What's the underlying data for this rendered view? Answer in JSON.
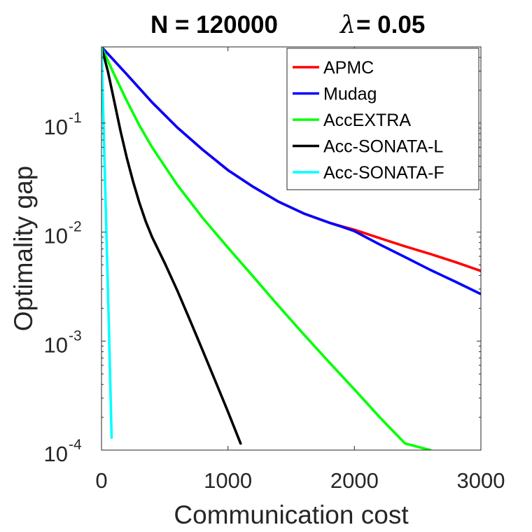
{
  "chart_data": {
    "type": "line",
    "title": {
      "left": "N = 120000",
      "right_symbol": "λ",
      "right_value": "= 0.05"
    },
    "xlabel": "Communication cost",
    "ylabel": "Optimality gap",
    "xlim": [
      0,
      3000
    ],
    "ylim": [
      0.0001,
      0.5
    ],
    "yscale": "log",
    "grid": false,
    "legend_position": "top-right",
    "x_ticks": [
      {
        "value": 0,
        "label": "0"
      },
      {
        "value": 1000,
        "label": "1000"
      },
      {
        "value": 2000,
        "label": "2000"
      },
      {
        "value": 3000,
        "label": "3000"
      }
    ],
    "y_ticks": [
      {
        "value": 0.1,
        "base": "10",
        "exp": "-1"
      },
      {
        "value": 0.01,
        "base": "10",
        "exp": "-2"
      },
      {
        "value": 0.001,
        "base": "10",
        "exp": "-3"
      },
      {
        "value": 0.0001,
        "base": "10",
        "exp": "-4"
      }
    ],
    "series": [
      {
        "name": "APMC",
        "color": "#ff0000",
        "x": [
          0,
          200,
          400,
          600,
          800,
          1000,
          1200,
          1400,
          1600,
          1800,
          1900,
          2000,
          2200,
          2400,
          2600,
          2800,
          3000
        ],
        "y": [
          0.5,
          0.28,
          0.155,
          0.091,
          0.057,
          0.037,
          0.026,
          0.019,
          0.0148,
          0.0122,
          0.0113,
          0.0105,
          0.0088,
          0.0074,
          0.0063,
          0.0053,
          0.0044
        ]
      },
      {
        "name": "Mudag",
        "color": "#0000ff",
        "x": [
          0,
          200,
          400,
          600,
          800,
          1000,
          1200,
          1400,
          1600,
          1800,
          1900,
          2000,
          2200,
          2400,
          2600,
          2800,
          3000
        ],
        "y": [
          0.5,
          0.28,
          0.155,
          0.091,
          0.057,
          0.037,
          0.026,
          0.019,
          0.0148,
          0.0122,
          0.0112,
          0.0102,
          0.0077,
          0.0059,
          0.0045,
          0.0035,
          0.0027
        ]
      },
      {
        "name": "AccEXTRA",
        "color": "#00ff00",
        "x": [
          0,
          100,
          200,
          300,
          400,
          600,
          800,
          1000,
          1200,
          1400,
          1600,
          1800,
          2000,
          2200,
          2400,
          2600
        ],
        "y": [
          0.5,
          0.28,
          0.16,
          0.095,
          0.06,
          0.027,
          0.0135,
          0.0072,
          0.0039,
          0.0021,
          0.00115,
          0.00064,
          0.00036,
          0.0002,
          0.000115,
          0.0001
        ]
      },
      {
        "name": "Acc-SONATA-L",
        "color": "#000000",
        "x": [
          0,
          50,
          100,
          150,
          200,
          250,
          300,
          350,
          400,
          500,
          600,
          700,
          800,
          900,
          1000,
          1100
        ],
        "y": [
          0.5,
          0.3,
          0.16,
          0.085,
          0.048,
          0.029,
          0.0185,
          0.0125,
          0.009,
          0.0052,
          0.0029,
          0.00155,
          0.00082,
          0.00043,
          0.000225,
          0.000115
        ]
      },
      {
        "name": "Acc-SONATA-F",
        "color": "#00ffff",
        "x": [
          0,
          20,
          40,
          60,
          80
        ],
        "y": [
          0.5,
          0.066,
          0.0088,
          0.00115,
          0.00013
        ]
      }
    ]
  }
}
